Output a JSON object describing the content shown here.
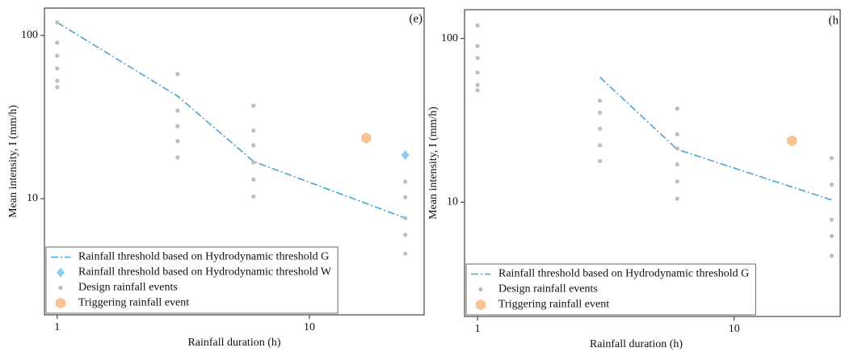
{
  "chart_data": [
    {
      "type": "scatter",
      "label": "(e)",
      "xlabel": "Rainfall duration (h)",
      "ylabel": "Mean intensity, I (mm/h)",
      "xscale": "log",
      "yscale": "log",
      "xlim": [
        0.89,
        28.5
      ],
      "ylim": [
        1.94,
        147
      ],
      "xticks": [
        1,
        10
      ],
      "yticks": [
        10,
        100
      ],
      "legend": "lower left",
      "series": [
        {
          "name": "Rainfall threshold based on Hydrodynamic threshold G",
          "marker": "dashdot-line",
          "color": "#4ba3cf",
          "x": [
            1,
            3,
            6,
            24
          ],
          "values": [
            120,
            42.5,
            16.9,
            7.6
          ]
        },
        {
          "name": "Rainfall threshold based on Hydrodynamic threshold W",
          "marker": "diamond",
          "color": "#8dcdee",
          "x": [
            24
          ],
          "values": [
            18.5
          ]
        },
        {
          "name": "Design rainfall events",
          "marker": "dot",
          "color": "#bdbdbd",
          "x": [
            1,
            1,
            1,
            1,
            1,
            1,
            3,
            3,
            3,
            3,
            3,
            6,
            6,
            6,
            6,
            6,
            6,
            24,
            24,
            24,
            24,
            24
          ],
          "values": [
            120,
            90.2,
            75,
            62.7,
            52.8,
            48.2,
            58,
            34.6,
            27.8,
            22.5,
            17.9,
            37.1,
            26.1,
            21.2,
            16.7,
            13.1,
            10.3,
            12.7,
            10.2,
            7.6,
            6.0,
            4.6
          ]
        },
        {
          "name": "Triggering rainfall event",
          "marker": "hexagon",
          "color": "#f9c393",
          "x": [
            16.8
          ],
          "values": [
            23.5
          ]
        }
      ]
    },
    {
      "type": "scatter",
      "label": "(h",
      "xlabel": "Rainfall duration (h)",
      "ylabel": "Mean intensity, I (mm/h)",
      "xscale": "log",
      "yscale": "log",
      "xlim": [
        0.89,
        25.9
      ],
      "ylim": [
        2.0,
        150
      ],
      "xticks": [
        1,
        10
      ],
      "yticks": [
        10,
        100
      ],
      "legend": "lower left",
      "series": [
        {
          "name": "Rainfall threshold based on Hydrodynamic threshold G",
          "marker": "dashdot-line",
          "color": "#4ba3cf",
          "x": [
            3,
            6,
            24
          ],
          "values": [
            58,
            21,
            10.3
          ]
        },
        {
          "name": "Design rainfall events",
          "marker": "dot",
          "color": "#bdbdbd",
          "x": [
            1,
            1,
            1,
            1,
            1,
            1,
            3,
            3,
            3,
            3,
            3,
            6,
            6,
            6,
            6,
            6,
            6,
            24,
            24,
            24,
            24,
            24
          ],
          "values": [
            120,
            90,
            76,
            62,
            52,
            48.3,
            41.7,
            35.2,
            28.1,
            22.3,
            17.8,
            37.3,
            26,
            21.3,
            17,
            13.4,
            10.5,
            18.6,
            12.8,
            7.8,
            6.2,
            4.7
          ]
        },
        {
          "name": "Triggering rainfall event",
          "marker": "hexagon",
          "color": "#f9c393",
          "x": [
            16.8
          ],
          "values": [
            23.7
          ]
        }
      ]
    }
  ]
}
